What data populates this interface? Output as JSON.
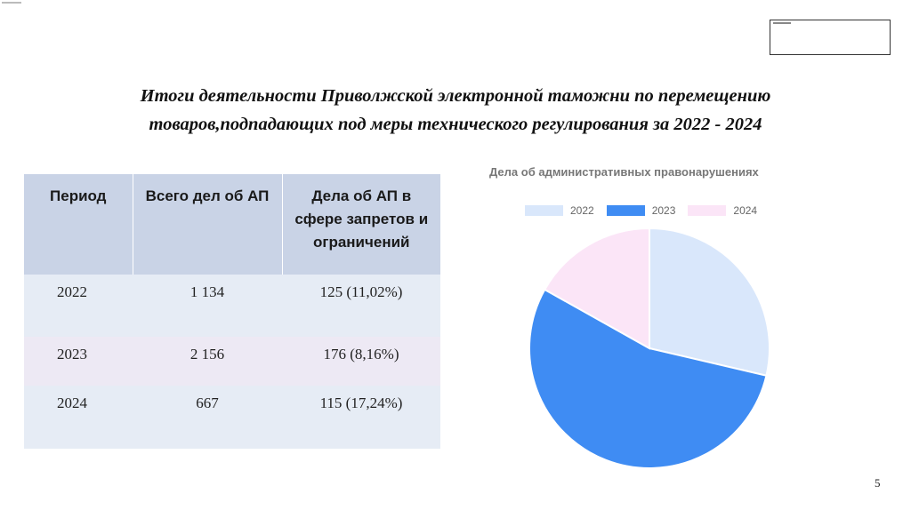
{
  "title": {
    "line1": "Итоги деятельности Приволжской электронной таможни по перемещению",
    "line2": "товаров,подпадающих под меры технического регулирования за 2022 - 2024"
  },
  "table": {
    "headers": [
      "Период",
      "Всего дел об АП",
      "Дела об АП в сфере запретов и ограничений"
    ],
    "rows": [
      [
        "2022",
        "1 134",
        "125 (11,02%)"
      ],
      [
        "2023",
        "2 156",
        "176 (8,16%)"
      ],
      [
        "2024",
        "667",
        "115 (17,24%)"
      ]
    ]
  },
  "chart_data": {
    "type": "pie",
    "title": "Дела об административных правонарушениях",
    "categories": [
      "2022",
      "2023",
      "2024"
    ],
    "values": [
      1134,
      2156,
      667
    ],
    "colors": [
      "#d9e7fb",
      "#3f8cf3",
      "#fbe5f7"
    ],
    "legend_position": "top"
  },
  "page_number": "5"
}
